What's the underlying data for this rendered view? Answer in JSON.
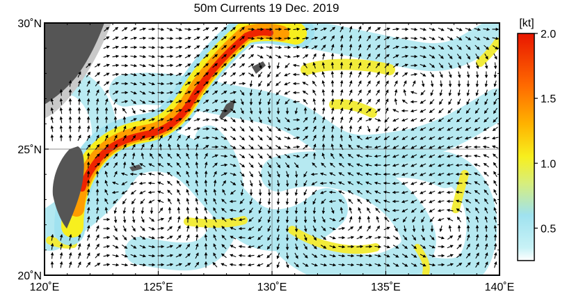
{
  "title": "50m Currents  19 Dec. 2019",
  "map": {
    "lon_min": 120,
    "lon_max": 140,
    "lat_min": 20,
    "lat_max": 30,
    "x_ticks": [
      {
        "value": 120,
        "label": "120˚E"
      },
      {
        "value": 125,
        "label": "125˚E"
      },
      {
        "value": 130,
        "label": "130˚E"
      },
      {
        "value": 135,
        "label": "135˚E"
      },
      {
        "value": 140,
        "label": "140˚E"
      }
    ],
    "y_ticks": [
      {
        "value": 20,
        "label": "20˚N"
      },
      {
        "value": 25,
        "label": "25˚N"
      },
      {
        "value": 30,
        "label": "30˚N"
      }
    ],
    "grid": true,
    "land_color": "#555555"
  },
  "colorbar": {
    "unit": "[kt]",
    "min": 0.25,
    "max": 2.0,
    "ticks": [
      {
        "value": 0.5,
        "label": "0.5"
      },
      {
        "value": 1.0,
        "label": "1.0"
      },
      {
        "value": 1.5,
        "label": "1.5"
      },
      {
        "value": 2.0,
        "label": "2.0"
      }
    ],
    "stops": [
      {
        "value": 0.25,
        "color": "#ffffff"
      },
      {
        "value": 0.35,
        "color": "#c8f2f6"
      },
      {
        "value": 0.6,
        "color": "#9fe2ef"
      },
      {
        "value": 0.85,
        "color": "#d8ee7a"
      },
      {
        "value": 1.05,
        "color": "#f7ef1e"
      },
      {
        "value": 1.3,
        "color": "#ffb300"
      },
      {
        "value": 1.6,
        "color": "#ff6a00"
      },
      {
        "value": 2.0,
        "color": "#e81600"
      }
    ]
  }
}
